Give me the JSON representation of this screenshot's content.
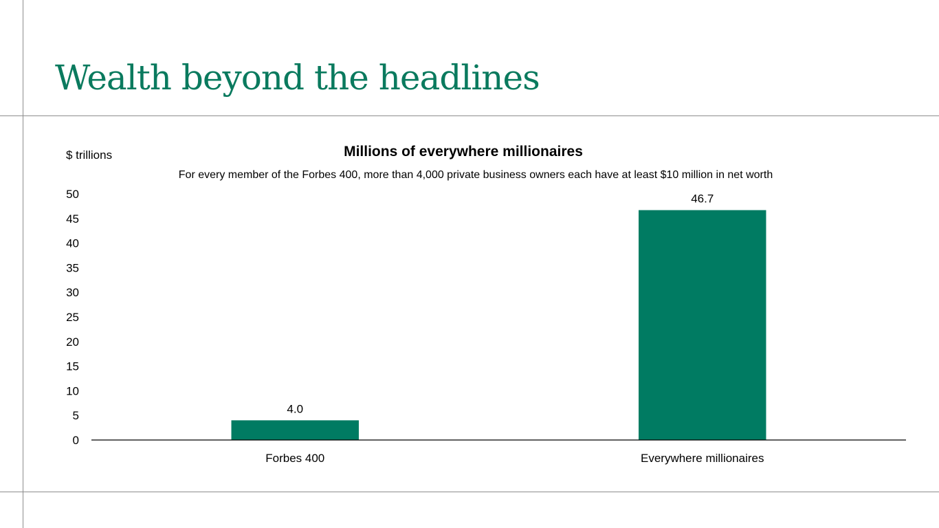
{
  "slide": {
    "title": "Wealth beyond the headlines"
  },
  "colors": {
    "title": "#0a7a5e",
    "bar": "#007b62",
    "rule": "#8c8c8c"
  },
  "chart_data": {
    "type": "bar",
    "title": "Millions of everywhere millionaires",
    "subtitle": "For every member of the Forbes 400, more than 4,000 private business owners each have at least $10 million in net worth",
    "ylabel": "$ trillions",
    "xlabel": "",
    "categories": [
      "Forbes 400",
      "Everywhere millionaires"
    ],
    "values": [
      4.0,
      46.7
    ],
    "value_labels": [
      "4.0",
      "46.7"
    ],
    "ylim": [
      0,
      50
    ],
    "yticks": [
      0,
      5,
      10,
      15,
      20,
      25,
      30,
      35,
      40,
      45,
      50
    ],
    "grid": false,
    "legend": "none"
  }
}
